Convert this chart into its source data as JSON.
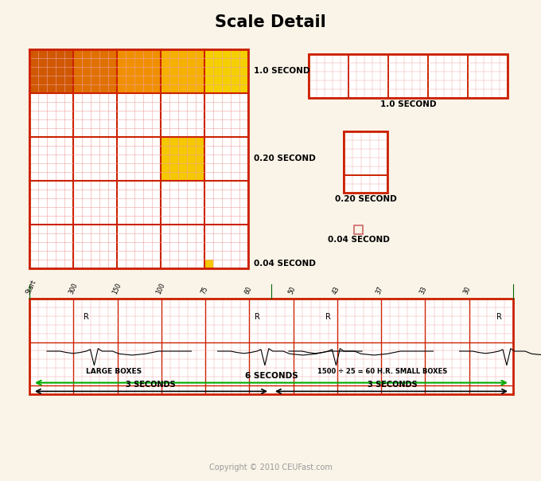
{
  "title": "Scale Detail",
  "bg_color": "#faf4e8",
  "small_grid_color": "#f0a0a0",
  "large_grid_color": "#cc2200",
  "orange_colors": [
    "#d05800",
    "#e07000",
    "#f09000",
    "#f5b000",
    "#f5d000"
  ],
  "yellow_color": "#f5c800",
  "label_1sec": "1.0 SECOND",
  "label_020sec": "0.20 SECOND",
  "label_004sec": "0.04 SECOND",
  "label_6sec": "6 SECONDS",
  "label_3sec_left": "3 SECONDS",
  "label_3sec_right": "3 SECONDS",
  "label_large_boxes": "LARGE BOXES",
  "label_small_boxes": "1500 ÷ 25 = 60 H.R. SMALL BOXES",
  "copyright": "Copyright © 2010 CEUFast.com",
  "speed_labels": [
    "Start",
    "300",
    "150",
    "100",
    "75",
    "60",
    "50",
    "43",
    "37",
    "33",
    "30"
  ]
}
